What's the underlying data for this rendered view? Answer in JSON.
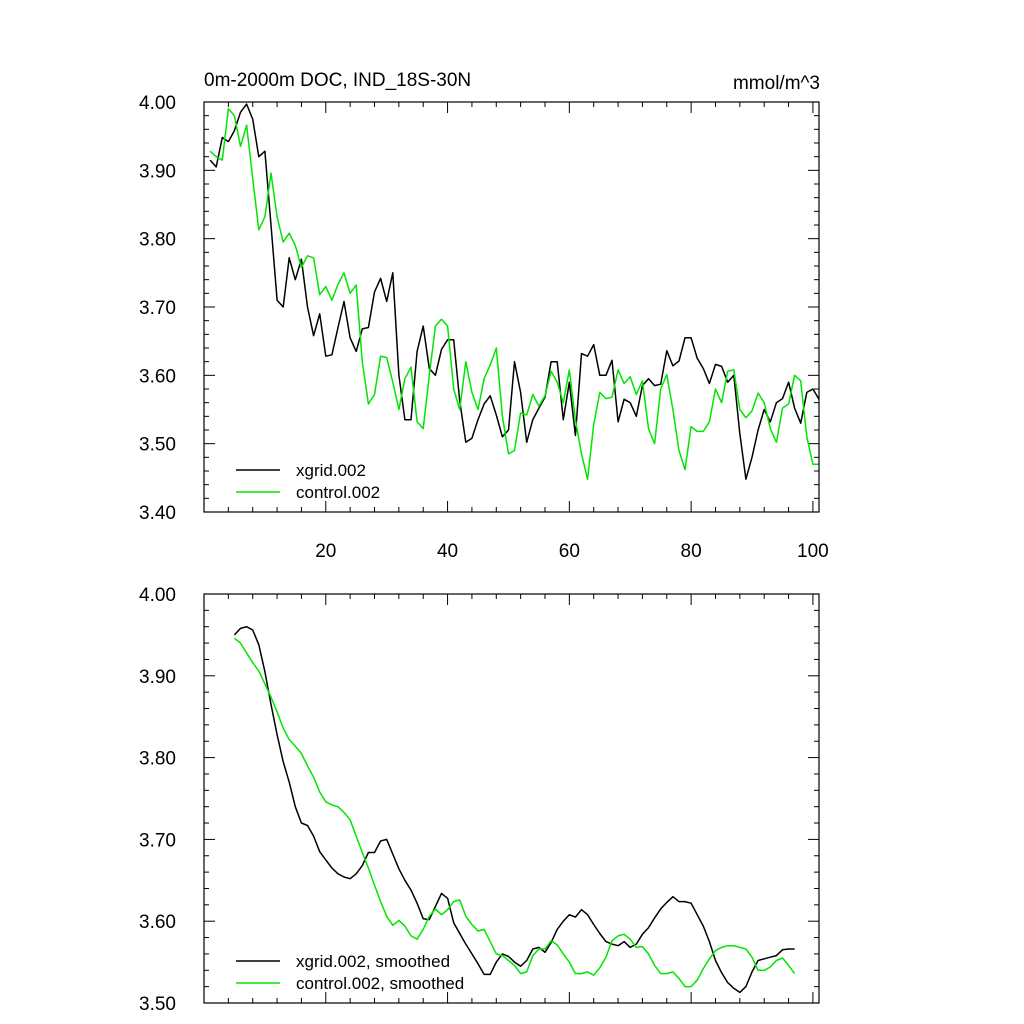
{
  "chart_data": [
    {
      "type": "line",
      "title": "0m-2000m DOC, IND_18S-30N",
      "units": "mmol/m^3",
      "xlim": [
        0,
        101
      ],
      "ylim": [
        3.4,
        4.0
      ],
      "xticks": [
        20,
        40,
        60,
        80,
        100
      ],
      "xtick_labels": [
        "20",
        "40",
        "60",
        "80",
        "100"
      ],
      "yticks": [
        3.4,
        3.5,
        3.6,
        3.7,
        3.8,
        3.9,
        4.0
      ],
      "ytick_labels": [
        "3.40",
        "3.50",
        "3.60",
        "3.70",
        "3.80",
        "3.90",
        "4.00"
      ],
      "x": [
        1,
        2,
        3,
        4,
        5,
        6,
        7,
        8,
        9,
        10,
        11,
        12,
        13,
        14,
        15,
        16,
        17,
        18,
        19,
        20,
        21,
        22,
        23,
        24,
        25,
        26,
        27,
        28,
        29,
        30,
        31,
        32,
        33,
        34,
        35,
        36,
        37,
        38,
        39,
        40,
        41,
        42,
        43,
        44,
        45,
        46,
        47,
        48,
        49,
        50,
        51,
        52,
        53,
        54,
        55,
        56,
        57,
        58,
        59,
        60,
        61,
        62,
        63,
        64,
        65,
        66,
        67,
        68,
        69,
        70,
        71,
        72,
        73,
        74,
        75,
        76,
        77,
        78,
        79,
        80,
        81,
        82,
        83,
        84,
        85,
        86,
        87,
        88,
        89,
        90,
        91,
        92,
        93,
        94,
        95,
        96,
        97,
        98,
        99,
        100,
        101
      ],
      "legend": [
        "xgrid.002",
        "control.002"
      ],
      "series": [
        {
          "name": "xgrid.002",
          "color": "#000000",
          "values": [
            3.915,
            3.905,
            3.948,
            3.942,
            3.958,
            3.985,
            3.997,
            3.975,
            3.92,
            3.928,
            3.82,
            3.71,
            3.7,
            3.772,
            3.74,
            3.77,
            3.7,
            3.658,
            3.69,
            3.628,
            3.63,
            3.67,
            3.708,
            3.655,
            3.635,
            3.668,
            3.67,
            3.722,
            3.742,
            3.708,
            3.75,
            3.6,
            3.535,
            3.535,
            3.635,
            3.672,
            3.61,
            3.6,
            3.638,
            3.652,
            3.652,
            3.563,
            3.502,
            3.508,
            3.535,
            3.558,
            3.57,
            3.542,
            3.51,
            3.52,
            3.62,
            3.575,
            3.502,
            3.535,
            3.552,
            3.568,
            3.62,
            3.62,
            3.535,
            3.59,
            3.512,
            3.632,
            3.628,
            3.645,
            3.6,
            3.6,
            3.622,
            3.532,
            3.565,
            3.56,
            3.54,
            3.585,
            3.595,
            3.585,
            3.587,
            3.636,
            3.614,
            3.621,
            3.655,
            3.655,
            3.625,
            3.61,
            3.588,
            3.616,
            3.613,
            3.59,
            3.6,
            3.515,
            3.448,
            3.48,
            3.52,
            3.55,
            3.532,
            3.56,
            3.566,
            3.59,
            3.552,
            3.53,
            3.575,
            3.58,
            3.565
          ]
        },
        {
          "name": "control.002",
          "color": "#00e600",
          "values": [
            3.928,
            3.92,
            3.915,
            3.99,
            3.98,
            3.935,
            3.966,
            3.888,
            3.813,
            3.832,
            3.896,
            3.832,
            3.795,
            3.808,
            3.79,
            3.758,
            3.775,
            3.772,
            3.718,
            3.73,
            3.71,
            3.733,
            3.75,
            3.72,
            3.732,
            3.62,
            3.558,
            3.572,
            3.628,
            3.626,
            3.59,
            3.55,
            3.595,
            3.612,
            3.532,
            3.522,
            3.6,
            3.672,
            3.682,
            3.672,
            3.58,
            3.55,
            3.62,
            3.575,
            3.55,
            3.595,
            3.615,
            3.64,
            3.54,
            3.485,
            3.49,
            3.545,
            3.542,
            3.572,
            3.555,
            3.57,
            3.606,
            3.59,
            3.56,
            3.608,
            3.535,
            3.485,
            3.448,
            3.528,
            3.575,
            3.566,
            3.568,
            3.608,
            3.588,
            3.598,
            3.572,
            3.592,
            3.522,
            3.5,
            3.58,
            3.601,
            3.55,
            3.49,
            3.462,
            3.525,
            3.518,
            3.518,
            3.532,
            3.58,
            3.56,
            3.606,
            3.608,
            3.55,
            3.538,
            3.548,
            3.574,
            3.56,
            3.522,
            3.502,
            3.552,
            3.558,
            3.6,
            3.592,
            3.51,
            3.47,
            3.47
          ]
        }
      ]
    },
    {
      "type": "line",
      "title": "",
      "units": "",
      "xlim": [
        0,
        101
      ],
      "ylim": [
        3.5,
        4.0
      ],
      "xticks": [
        20,
        40,
        60,
        80,
        100
      ],
      "xtick_labels": [],
      "yticks": [
        3.5,
        3.6,
        3.7,
        3.8,
        3.9,
        4.0
      ],
      "ytick_labels": [
        "3.50",
        "3.60",
        "3.70",
        "3.80",
        "3.90",
        "4.00"
      ],
      "x": [
        5,
        6,
        7,
        8,
        9,
        10,
        11,
        12,
        13,
        14,
        15,
        16,
        17,
        18,
        19,
        20,
        21,
        22,
        23,
        24,
        25,
        26,
        27,
        28,
        29,
        30,
        31,
        32,
        33,
        34,
        35,
        36,
        37,
        38,
        39,
        40,
        41,
        42,
        43,
        44,
        45,
        46,
        47,
        48,
        49,
        50,
        51,
        52,
        53,
        54,
        55,
        56,
        57,
        58,
        59,
        60,
        61,
        62,
        63,
        64,
        65,
        66,
        67,
        68,
        69,
        70,
        71,
        72,
        73,
        74,
        75,
        76,
        77,
        78,
        79,
        80,
        81,
        82,
        83,
        84,
        85,
        86,
        87,
        88,
        89,
        90,
        91,
        92,
        93,
        94,
        95,
        96,
        97
      ],
      "legend": [
        "xgrid.002, smoothed",
        "control.002, smoothed"
      ],
      "series": [
        {
          "name": "xgrid.002, smoothed",
          "color": "#000000",
          "values": [
            3.95,
            3.958,
            3.96,
            3.956,
            3.938,
            3.905,
            3.865,
            3.828,
            3.795,
            3.77,
            3.74,
            3.72,
            3.717,
            3.704,
            3.685,
            3.675,
            3.665,
            3.658,
            3.654,
            3.652,
            3.658,
            3.668,
            3.684,
            3.684,
            3.698,
            3.7,
            3.682,
            3.664,
            3.65,
            3.638,
            3.622,
            3.603,
            3.602,
            3.618,
            3.634,
            3.628,
            3.598,
            3.585,
            3.572,
            3.56,
            3.548,
            3.535,
            3.535,
            3.55,
            3.56,
            3.557,
            3.55,
            3.545,
            3.552,
            3.566,
            3.568,
            3.562,
            3.574,
            3.59,
            3.6,
            3.608,
            3.605,
            3.614,
            3.608,
            3.596,
            3.585,
            3.575,
            3.572,
            3.57,
            3.575,
            3.568,
            3.572,
            3.584,
            3.592,
            3.604,
            3.615,
            3.623,
            3.63,
            3.624,
            3.624,
            3.622,
            3.608,
            3.594,
            3.575,
            3.552,
            3.537,
            3.525,
            3.518,
            3.513,
            3.52,
            3.538,
            3.552,
            3.554,
            3.556,
            3.558,
            3.565,
            3.566,
            3.566
          ]
        },
        {
          "name": "control.002, smoothed",
          "color": "#00e600",
          "values": [
            3.946,
            3.94,
            3.928,
            3.916,
            3.906,
            3.89,
            3.874,
            3.856,
            3.836,
            3.822,
            3.814,
            3.805,
            3.79,
            3.776,
            3.758,
            3.746,
            3.742,
            3.74,
            3.733,
            3.724,
            3.704,
            3.684,
            3.665,
            3.644,
            3.624,
            3.606,
            3.595,
            3.601,
            3.594,
            3.582,
            3.578,
            3.59,
            3.606,
            3.615,
            3.608,
            3.614,
            3.624,
            3.626,
            3.606,
            3.596,
            3.588,
            3.59,
            3.575,
            3.56,
            3.558,
            3.552,
            3.546,
            3.536,
            3.538,
            3.558,
            3.566,
            3.566,
            3.576,
            3.571,
            3.56,
            3.55,
            3.536,
            3.536,
            3.538,
            3.534,
            3.543,
            3.556,
            3.576,
            3.582,
            3.584,
            3.578,
            3.568,
            3.569,
            3.56,
            3.546,
            3.536,
            3.536,
            3.538,
            3.53,
            3.52,
            3.52,
            3.528,
            3.542,
            3.554,
            3.564,
            3.568,
            3.57,
            3.57,
            3.568,
            3.566,
            3.556,
            3.54,
            3.54,
            3.544,
            3.552,
            3.555,
            3.546,
            3.536
          ]
        }
      ]
    }
  ]
}
